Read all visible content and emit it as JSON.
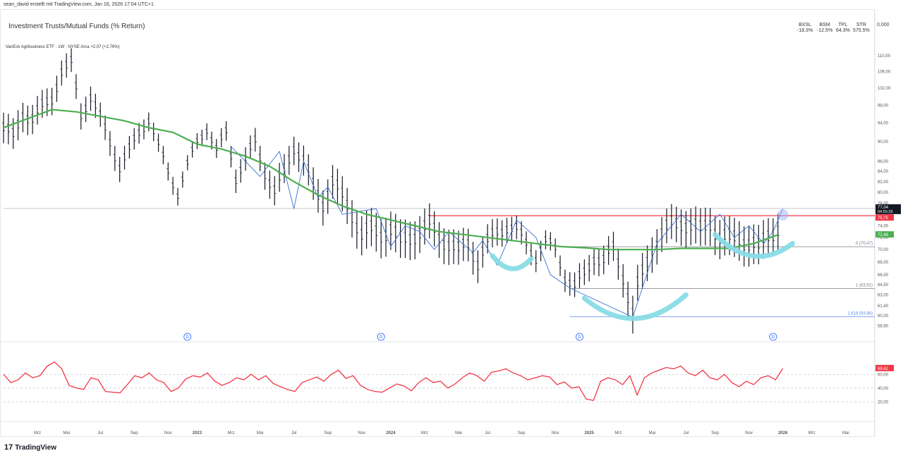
{
  "header": {
    "attribution": "sean_david erstellt mit TradingView.com, Jan 16, 2026 17:04 UTC+1",
    "title": "Investment Trusts/Mutual Funds (% Return)",
    "series_label": "VanEck Agribusiness ETF · 1W · NYSE Arca  +2,07 (+2,76%)",
    "returns": [
      {
        "ticker": "BXSL",
        "value": "-18.3%"
      },
      {
        "ticker": "BSM",
        "value": "-12.5%"
      },
      {
        "ticker": "TPL",
        "value": "64.3%"
      },
      {
        "ticker": "STR",
        "value": "575.5%"
      }
    ],
    "right_value": "0,000"
  },
  "footer": {
    "brand": "TradingView",
    "logo_text": "17"
  },
  "colors": {
    "up": "#131722",
    "ma": "#4caf50",
    "resistance": "#f23645",
    "rsi": "#f23645",
    "zigzag": "#3a6fd8",
    "marker": "#88dce6",
    "fib": "#787b86",
    "fib_ext": "#5b8def"
  },
  "chart_data": {
    "type": "line",
    "main": {
      "y_ticks": [
        110,
        106,
        102,
        98,
        94,
        90,
        86,
        84,
        82,
        80,
        78,
        76,
        74,
        72,
        70,
        68,
        66,
        64.5,
        63,
        61.4,
        60,
        58.6
      ],
      "y_tick_labels": [
        "110,00",
        "106,00",
        "102,00",
        "98,00",
        "94,00",
        "90,00",
        "86,00",
        "84,00",
        "82,00",
        "80,00",
        "78,00",
        "76,00",
        "74,00",
        "72,00",
        "70,00",
        "68,00",
        "66,00",
        "64,50",
        "63,00",
        "61,40",
        "60,00",
        "58,60"
      ],
      "ylim": [
        57.5,
        112
      ],
      "log_scale": true,
      "x_range": [
        0,
        180
      ],
      "price_series": [
        [
          0,
          93
        ],
        [
          2,
          91
        ],
        [
          4,
          96
        ],
        [
          6,
          95
        ],
        [
          8,
          97.5
        ],
        [
          10,
          99.5
        ],
        [
          12,
          106
        ],
        [
          14,
          108
        ],
        [
          16,
          96
        ],
        [
          18,
          100
        ],
        [
          20,
          95
        ],
        [
          22,
          90
        ],
        [
          24,
          85
        ],
        [
          26,
          88
        ],
        [
          28,
          92
        ],
        [
          30,
          95
        ],
        [
          32,
          89
        ],
        [
          34,
          84
        ],
        [
          36,
          80
        ],
        [
          38,
          85
        ],
        [
          40,
          90
        ],
        [
          42,
          93
        ],
        [
          44,
          88
        ],
        [
          46,
          92
        ],
        [
          48,
          83
        ],
        [
          50,
          86
        ],
        [
          52,
          90
        ],
        [
          54,
          84
        ],
        [
          56,
          80
        ],
        [
          58,
          84
        ],
        [
          60,
          89
        ],
        [
          62,
          86
        ],
        [
          64,
          81
        ],
        [
          66,
          78
        ],
        [
          68,
          82
        ],
        [
          70,
          79
        ],
        [
          72,
          76
        ],
        [
          74,
          72.5
        ],
        [
          76,
          73
        ],
        [
          78,
          72.5
        ],
        [
          80,
          73.5
        ],
        [
          82,
          71
        ],
        [
          84,
          72
        ],
        [
          86,
          73
        ],
        [
          88,
          74
        ],
        [
          90,
          72
        ],
        [
          92,
          71
        ],
        [
          94,
          69.5
        ],
        [
          96,
          71
        ],
        [
          98,
          68
        ],
        [
          100,
          71
        ],
        [
          102,
          73
        ],
        [
          104,
          74
        ],
        [
          106,
          73
        ],
        [
          108,
          71
        ],
        [
          110,
          69
        ],
        [
          112,
          71
        ],
        [
          114,
          70
        ],
        [
          116,
          66
        ],
        [
          118,
          64
        ],
        [
          120,
          66
        ],
        [
          122,
          69
        ],
        [
          124,
          68
        ],
        [
          126,
          70
        ],
        [
          128,
          66
        ],
        [
          130,
          60
        ],
        [
          131,
          64
        ],
        [
          132,
          66
        ],
        [
          134,
          70
        ],
        [
          136,
          72.5
        ],
        [
          138,
          74
        ],
        [
          140,
          74.5
        ],
        [
          142,
          74
        ],
        [
          144,
          73
        ],
        [
          146,
          74.5
        ],
        [
          148,
          72
        ],
        [
          150,
          71.5
        ],
        [
          152,
          72
        ],
        [
          154,
          71
        ],
        [
          156,
          70
        ],
        [
          158,
          72.5
        ],
        [
          160,
          73.5
        ],
        [
          161,
          77
        ]
      ],
      "ma_series": [
        [
          0,
          93
        ],
        [
          5,
          95
        ],
        [
          10,
          97
        ],
        [
          15,
          96.5
        ],
        [
          20,
          95.5
        ],
        [
          25,
          94.5
        ],
        [
          30,
          93
        ],
        [
          35,
          92
        ],
        [
          40,
          89.5
        ],
        [
          45,
          88.5
        ],
        [
          50,
          87
        ],
        [
          55,
          85
        ],
        [
          60,
          82
        ],
        [
          65,
          79.5
        ],
        [
          70,
          77.5
        ],
        [
          75,
          76
        ],
        [
          80,
          75
        ],
        [
          85,
          74
        ],
        [
          90,
          73
        ],
        [
          95,
          72.5
        ],
        [
          100,
          72
        ],
        [
          105,
          71.5
        ],
        [
          110,
          71
        ],
        [
          115,
          70.5
        ],
        [
          120,
          70.3
        ],
        [
          125,
          70
        ],
        [
          130,
          70
        ],
        [
          135,
          70
        ],
        [
          140,
          70.2
        ],
        [
          145,
          70.2
        ],
        [
          150,
          70.2
        ],
        [
          155,
          71
        ],
        [
          160,
          72.46
        ]
      ],
      "zigzag": [
        [
          47,
          89
        ],
        [
          53,
          83
        ],
        [
          57,
          88
        ],
        [
          60,
          77
        ],
        [
          62,
          86
        ],
        [
          65,
          79
        ],
        [
          67,
          81
        ],
        [
          70,
          76
        ],
        [
          77,
          77
        ],
        [
          80,
          70.5
        ],
        [
          83,
          74
        ],
        [
          86,
          73
        ],
        [
          89,
          70
        ],
        [
          92,
          73
        ],
        [
          97,
          69.5
        ],
        [
          99,
          71.5
        ],
        [
          102,
          67.5
        ],
        [
          106,
          75
        ],
        [
          110,
          72
        ],
        [
          113,
          66
        ],
        [
          117,
          64
        ],
        [
          130,
          59.8
        ],
        [
          135,
          71
        ],
        [
          140,
          76
        ],
        [
          144,
          73
        ],
        [
          148,
          76
        ],
        [
          151,
          72
        ],
        [
          154,
          74
        ],
        [
          157,
          71
        ],
        [
          159,
          73
        ],
        [
          161,
          77
        ]
      ],
      "resistance": {
        "value": 75.75,
        "label": "75,75"
      },
      "last_price": {
        "value": 77.04,
        "label": "77,04",
        "countdown": "04:55:28"
      },
      "ma_last": {
        "value": 72.46,
        "label": "72,46"
      },
      "fib_levels": [
        {
          "ratio": "0 (70,47)",
          "value": 70.47
        },
        {
          "ratio": "1 (63,91)",
          "value": 63.91
        },
        {
          "ratio": "1,618 (59,86)",
          "value": 59.86
        }
      ],
      "dividend_marker": "D",
      "dividend_x": [
        38,
        78,
        119,
        159
      ]
    },
    "rsi": {
      "y_ticks": [
        60,
        40,
        20
      ],
      "y_tick_labels": [
        "60,00",
        "40,00",
        "20,00"
      ],
      "ylim": [
        10,
        90
      ],
      "last": {
        "value": 68.62,
        "label": "68,62"
      },
      "values": [
        60,
        48,
        52,
        62,
        55,
        58,
        72,
        78,
        68,
        44,
        40,
        38,
        55,
        52,
        35,
        34,
        33,
        45,
        58,
        55,
        62,
        52,
        48,
        35,
        40,
        53,
        58,
        56,
        62,
        50,
        44,
        48,
        55,
        52,
        60,
        52,
        58,
        47,
        42,
        38,
        35,
        48,
        52,
        56,
        50,
        60,
        66,
        54,
        58,
        44,
        38,
        35,
        34,
        40,
        46,
        43,
        36,
        48,
        55,
        48,
        50,
        40,
        46,
        55,
        62,
        58,
        50,
        63,
        65,
        68,
        62,
        58,
        52,
        55,
        58,
        56,
        45,
        49,
        40,
        42,
        24,
        22,
        50,
        55,
        52,
        45,
        58,
        30,
        55,
        62,
        66,
        70,
        68,
        72,
        62,
        58,
        66,
        55,
        52,
        60,
        48,
        42,
        50,
        45,
        55,
        58,
        52,
        68.62
      ],
      "x_start": 0,
      "x_end": 161
    },
    "x_axis": [
      {
        "label": "Mrz",
        "x": 7
      },
      {
        "label": "Mai",
        "x": 13
      },
      {
        "label": "Jul",
        "x": 20
      },
      {
        "label": "Sep",
        "x": 27
      },
      {
        "label": "Nov",
        "x": 34
      },
      {
        "label": "2023",
        "x": 40
      },
      {
        "label": "Mrz",
        "x": 47
      },
      {
        "label": "Mai",
        "x": 53
      },
      {
        "label": "Jul",
        "x": 60
      },
      {
        "label": "Sep",
        "x": 67
      },
      {
        "label": "Nov",
        "x": 74
      },
      {
        "label": "2024",
        "x": 80
      },
      {
        "label": "Mrz",
        "x": 87
      },
      {
        "label": "Mai",
        "x": 94
      },
      {
        "label": "Jul",
        "x": 100
      },
      {
        "label": "Sep",
        "x": 107
      },
      {
        "label": "Nov",
        "x": 114
      },
      {
        "label": "2025",
        "x": 121
      },
      {
        "label": "Mrz",
        "x": 127
      },
      {
        "label": "Mai",
        "x": 134
      },
      {
        "label": "Jul",
        "x": 141
      },
      {
        "label": "Sep",
        "x": 147
      },
      {
        "label": "Nov",
        "x": 154
      },
      {
        "label": "2026",
        "x": 161
      },
      {
        "label": "Mrz",
        "x": 167
      },
      {
        "label": "Mai",
        "x": 174
      }
    ]
  }
}
